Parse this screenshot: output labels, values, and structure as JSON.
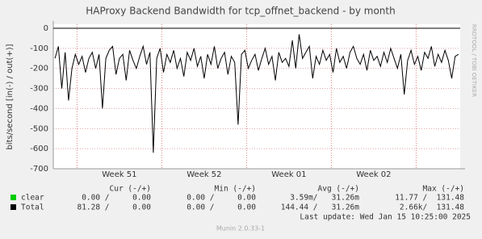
{
  "chart_data": {
    "type": "line",
    "title": "HAProxy Backend Bandwidth for tcp_offnet_backend - by month",
    "y_label": "bits/second [in(-) / out(+)]",
    "side_label": "RRDTOOL / TOBI OETIKER",
    "ylim": [
      -700,
      0
    ],
    "yticks": [
      0,
      -100,
      -200,
      -300,
      -400,
      -500,
      -600,
      -700
    ],
    "grid": true,
    "categories": [
      null,
      null,
      null,
      null,
      null,
      null,
      null,
      null,
      null,
      null,
      null,
      null,
      null,
      null,
      null,
      null,
      null,
      null,
      null,
      "Week 51",
      null,
      null,
      null,
      null,
      null,
      null,
      null,
      null,
      null,
      null,
      null,
      null,
      null,
      null,
      null,
      null,
      null,
      null,
      null,
      null,
      null,
      null,
      null,
      null,
      "Week 52",
      null,
      null,
      null,
      null,
      null,
      null,
      null,
      null,
      null,
      null,
      null,
      null,
      null,
      null,
      null,
      null,
      null,
      null,
      null,
      null,
      null,
      null,
      null,
      null,
      "Week 01",
      null,
      null,
      null,
      null,
      null,
      null,
      null,
      null,
      null,
      null,
      null,
      null,
      null,
      null,
      null,
      null,
      null,
      null,
      null,
      null,
      null,
      null,
      null,
      null,
      "Week 02",
      null,
      null,
      null,
      null,
      null,
      null,
      null,
      null,
      null,
      null,
      null,
      null,
      null,
      null,
      null,
      null,
      null,
      null,
      null,
      null,
      null,
      null,
      null,
      null,
      null
    ],
    "series": [
      {
        "name": "clear",
        "color": "#00cc00",
        "values": [
          0,
          0,
          0,
          0,
          0,
          0,
          0,
          0,
          0,
          0,
          0,
          0,
          0,
          0,
          0,
          0,
          0,
          0,
          0,
          0,
          0,
          0,
          0,
          0,
          0,
          0,
          0,
          0,
          0,
          0,
          0,
          0,
          0,
          0,
          0,
          0,
          0,
          0,
          0,
          0,
          0,
          0,
          0,
          0,
          0,
          0,
          0,
          0,
          0,
          0,
          0,
          0,
          0,
          0,
          0,
          0,
          0,
          0,
          0,
          0,
          0,
          0,
          0,
          0,
          0,
          0,
          0,
          0,
          0,
          0,
          0,
          0,
          0,
          0,
          0,
          0,
          0,
          0,
          0,
          0,
          0,
          0,
          0,
          0,
          0,
          0,
          0,
          0,
          0,
          0,
          0,
          0,
          0,
          0,
          0,
          0,
          0,
          0,
          0,
          0,
          0,
          0,
          0,
          0,
          0,
          0,
          0,
          0,
          0,
          0,
          0,
          0,
          0,
          0,
          0,
          0,
          0,
          0,
          0,
          0
        ]
      },
      {
        "name": "Total",
        "color": "#000000",
        "values": [
          -150,
          -90,
          -300,
          -120,
          -360,
          -200,
          -130,
          -180,
          -140,
          -220,
          -150,
          -120,
          -200,
          -130,
          -400,
          -150,
          -110,
          -90,
          -230,
          -150,
          -130,
          -260,
          -110,
          -160,
          -200,
          -140,
          -90,
          -180,
          -120,
          -620,
          -150,
          -100,
          -220,
          -130,
          -170,
          -110,
          -200,
          -150,
          -240,
          -120,
          -160,
          -100,
          -190,
          -140,
          -250,
          -130,
          -180,
          -90,
          -200,
          -150,
          -120,
          -230,
          -140,
          -170,
          -480,
          -130,
          -110,
          -200,
          -160,
          -130,
          -210,
          -150,
          -100,
          -180,
          -140,
          -260,
          -120,
          -170,
          -150,
          -190,
          -60,
          -200,
          -30,
          -150,
          -120,
          -90,
          -250,
          -140,
          -180,
          -110,
          -160,
          -130,
          -220,
          -100,
          -170,
          -140,
          -200,
          -120,
          -90,
          -150,
          -180,
          -130,
          -210,
          -110,
          -160,
          -140,
          -190,
          -120,
          -170,
          -100,
          -150,
          -200,
          -130,
          -330,
          -160,
          -110,
          -180,
          -140,
          -210,
          -120,
          -150,
          -90,
          -190,
          -130,
          -170,
          -110,
          -160,
          -250,
          -140,
          -130
        ]
      }
    ],
    "stat_headers": [
      "Cur (-/+)",
      "Min (-/+)",
      "Avg (-/+)",
      "Max (-/+)"
    ],
    "stats": [
      [
        "0.00 /     0.00",
        "0.00 /     0.00",
        "3.59m/   31.26m",
        "11.77 /  131.48"
      ],
      [
        "81.28 /     0.00",
        "0.00 /     0.00",
        "144.44 /   31.26m",
        "2.66k/  131.48"
      ]
    ],
    "last_update": "Last update: Wed Jan 15 10:25:00 2025",
    "footer": "Munin 2.0.33-1"
  }
}
